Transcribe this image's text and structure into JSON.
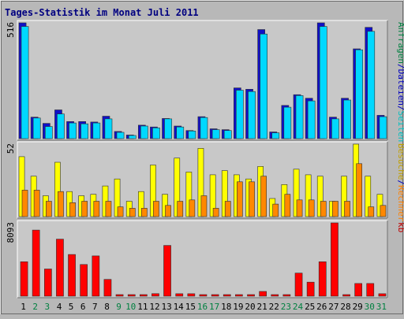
{
  "colors": {
    "title": "#000080",
    "anfragen": "#008040",
    "dateien": "#0000c0",
    "seiten": "#00c0c0",
    "besuche": "#c0a000",
    "rechner": "#ff8000",
    "kb": "#c00000",
    "bar_anfragen": "#1010c8",
    "bar_dateien": "#00d8ff",
    "bar_seiten": "#00b0b0",
    "bar_besuche": "#ffff00",
    "bar_rechner": "#ff8800",
    "bar_kb": "#ff0000",
    "weekend_day": "#008040"
  },
  "chart_data": {
    "type": "bar",
    "title": "Tages-Statistik im Monat Juli 2011",
    "days": [
      "1",
      "2",
      "3",
      "4",
      "5",
      "6",
      "7",
      "8",
      "9",
      "10",
      "11",
      "12",
      "13",
      "14",
      "15",
      "16",
      "17",
      "18",
      "19",
      "20",
      "21",
      "22",
      "23",
      "24",
      "25",
      "26",
      "27",
      "28",
      "29",
      "30",
      "31"
    ],
    "weekend_days": [
      "2",
      "3",
      "9",
      "10",
      "16",
      "17",
      "23",
      "24",
      "30",
      "31"
    ],
    "panels": [
      {
        "name": "requests",
        "ymax_label": "516",
        "ymax": 516,
        "legend": [
          {
            "label": "Anfragen",
            "color_key": "anfragen"
          },
          {
            "sep": "/"
          },
          {
            "label": "Dateien",
            "color_key": "dateien"
          },
          {
            "sep": "/"
          },
          {
            "label": "Seiten",
            "color_key": "seiten"
          }
        ],
        "series": [
          {
            "key": "anfragen",
            "values": [
              516,
              96,
              68,
              128,
              76,
              76,
              74,
              100,
              32,
              16,
              60,
              52,
              90,
              56,
              36,
              98,
              44,
              40,
              226,
              220,
              486,
              30,
              148,
              196,
              180,
              516,
              96,
              180,
              400,
              496,
              104
            ]
          },
          {
            "key": "dateien",
            "values": [
              500,
              92,
              54,
              110,
              70,
              66,
              70,
              88,
              28,
              14,
              56,
              48,
              88,
              52,
              34,
              94,
              40,
              36,
              216,
              210,
              466,
              26,
              140,
              192,
              168,
              500,
              88,
              172,
              396,
              478,
              98
            ]
          },
          {
            "key": "seiten",
            "values": [
              0,
              0,
              0,
              0,
              0,
              0,
              0,
              0,
              0,
              0,
              0,
              0,
              0,
              0,
              0,
              0,
              0,
              0,
              0,
              0,
              0,
              0,
              0,
              0,
              0,
              0,
              0,
              0,
              0,
              0,
              0
            ]
          }
        ]
      },
      {
        "name": "visits",
        "ymax_label": "52",
        "ymax": 52,
        "legend": [
          {
            "label": "Besuche",
            "color_key": "besuche"
          },
          {
            "sep": "/"
          },
          {
            "label": "Rechner",
            "color_key": "rechner"
          }
        ],
        "series": [
          {
            "key": "besuche",
            "values": [
              43,
              29,
              15,
              39,
              18,
              15,
              16,
              22,
              27,
              11,
              18,
              37,
              16,
              42,
              32,
              49,
              30,
              33,
              30,
              27,
              36,
              13,
              23,
              34,
              30,
              29,
              11,
              29,
              52,
              29,
              16
            ]
          },
          {
            "key": "rechner",
            "values": [
              19,
              19,
              11,
              18,
              10,
              11,
              11,
              11,
              7,
              6,
              6,
              11,
              8,
              11,
              12,
              15,
              6,
              11,
              25,
              25,
              29,
              9,
              16,
              12,
              12,
              11,
              11,
              11,
              38,
              7,
              8
            ]
          }
        ]
      },
      {
        "name": "traffic",
        "ymax_label": "8093",
        "ymax": 8093,
        "legend": [
          {
            "label": "kb",
            "color_key": "kb"
          }
        ],
        "series": [
          {
            "key": "kb",
            "values": [
              3800,
              7300,
              3000,
              6300,
              4600,
              3500,
              4450,
              1850,
              60,
              60,
              60,
              280,
              5600,
              270,
              270,
              120,
              120,
              120,
              120,
              120,
              520,
              110,
              110,
              2550,
              1550,
              3800,
              8093,
              140,
              1400,
              1400,
              270
            ]
          }
        ]
      }
    ]
  }
}
